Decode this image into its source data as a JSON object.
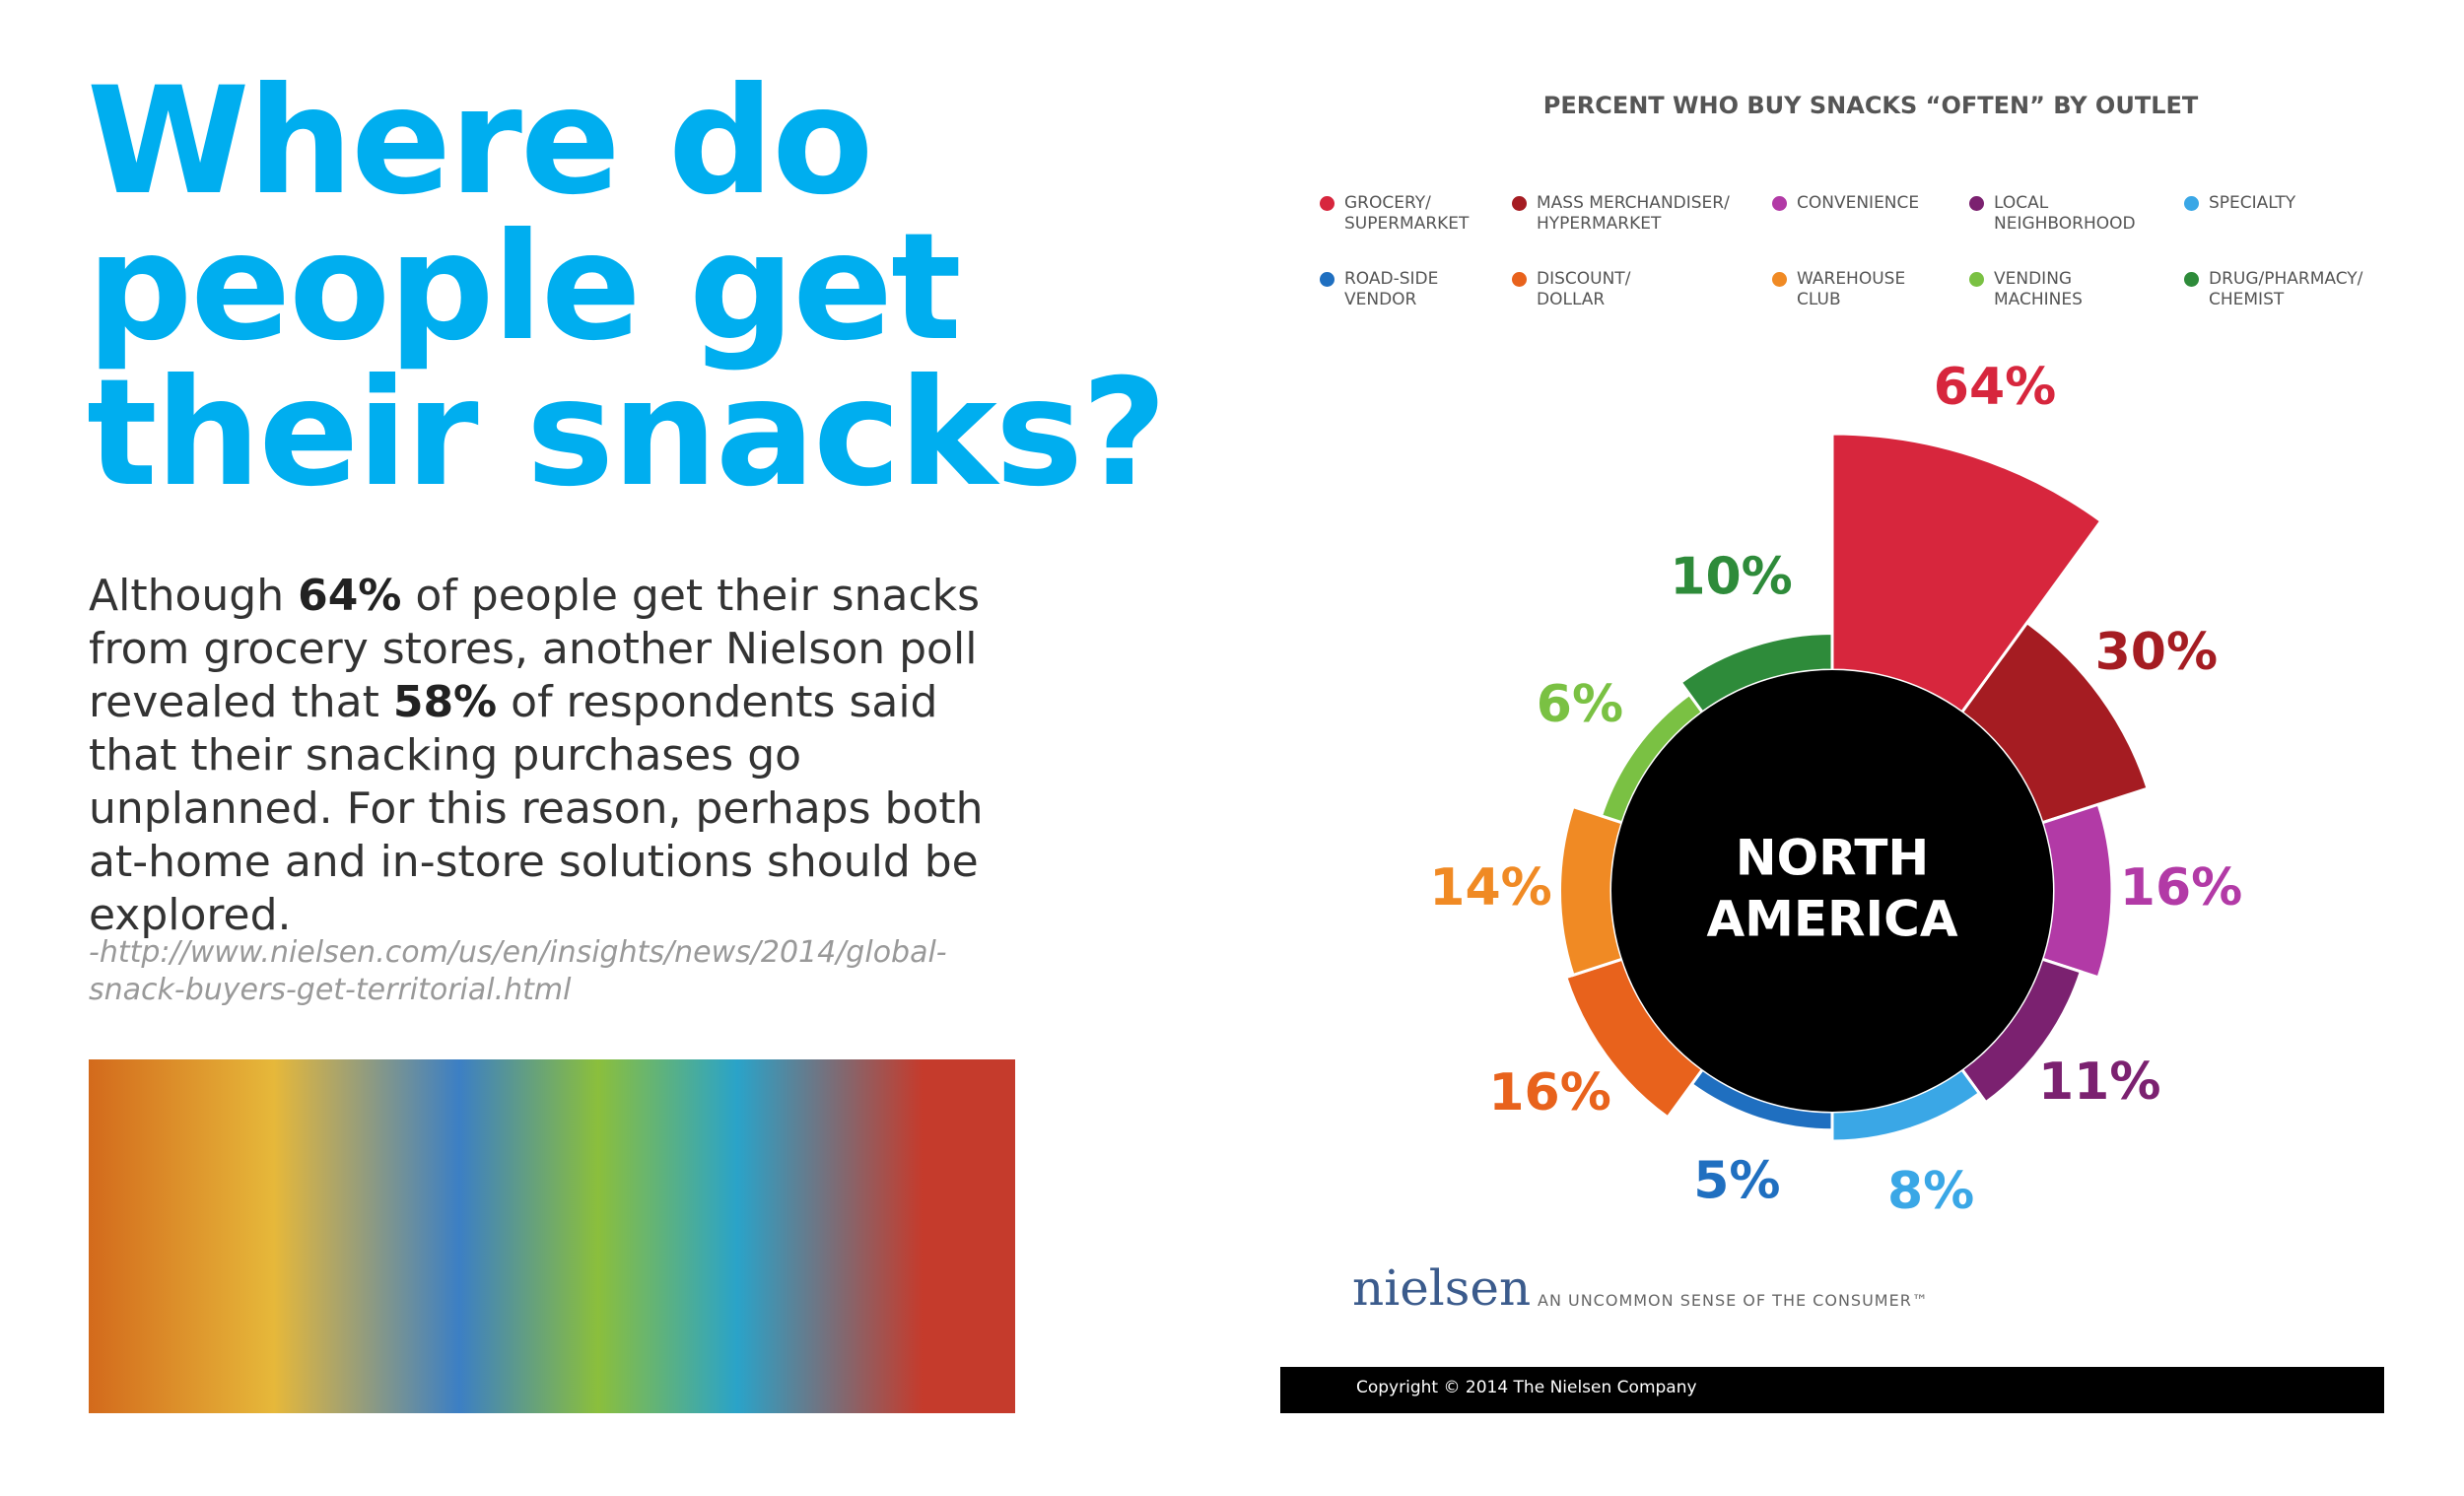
{
  "slide": {
    "title": [
      "Where do",
      "people get",
      "their snacks?"
    ],
    "paragraph": [
      {
        "text": "Although ",
        "bold": false
      },
      {
        "text": "64%",
        "bold": true
      },
      {
        "text": " of people get their snacks from grocery stores, another Nielson poll revealed that ",
        "bold": false
      },
      {
        "text": "58%",
        "bold": true
      },
      {
        "text": " of respondents said that their snacking purchases go unplanned. For this reason, perhaps both at-home and in-store solutions should be explored.",
        "bold": false
      }
    ],
    "source": "-http://www.nielsen.com/us/en/insights/news/2014/global-snack-buyers-get-territorial.html",
    "logo": "nielsen",
    "tagline": "AN UNCOMMON SENSE OF THE CONSUMER™",
    "copyright": "Copyright © 2014 The Nielsen Company"
  },
  "chart_data": {
    "type": "polar-bar",
    "title": "PERCENT WHO BUY SNACKS “OFTEN” BY OUTLET",
    "center_label": [
      "NORTH",
      "AMERICA"
    ],
    "categories": [
      "GROCERY/\nSUPERMARKET",
      "MASS MERCHANDISER/\nHYPERMARKET",
      "CONVENIENCE",
      "LOCAL\nNEIGHBORHOOD",
      "SPECIALTY",
      "ROAD-SIDE\nVENDOR",
      "DISCOUNT/\nDOLLAR",
      "WAREHOUSE\nCLUB",
      "VENDING\nMACHINES",
      "DRUG/PHARMACY/\nCHEMIST"
    ],
    "values": [
      64,
      30,
      16,
      11,
      8,
      5,
      16,
      14,
      6,
      10
    ],
    "value_labels": [
      "64%",
      "30%",
      "16%",
      "11%",
      "8%",
      "5%",
      "16%",
      "14%",
      "6%",
      "10%"
    ],
    "colors": [
      "#d7263d",
      "#a51c22",
      "#b23aa6",
      "#7b2170",
      "#3aa7e6",
      "#1f6fc0",
      "#e8621c",
      "#f08a24",
      "#7ac143",
      "#2e8b3a"
    ]
  }
}
